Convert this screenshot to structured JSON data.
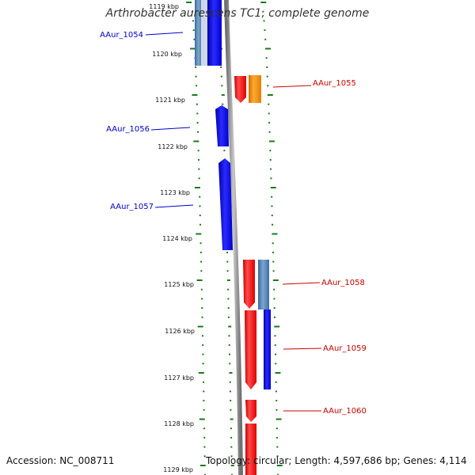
{
  "title": "Arthrobacter aurescens TC1, complete genome",
  "footer": {
    "accession": "Accession: NC_008711",
    "summary": "Topology: circular; Length: 4,597,686 bp; Genes: 4,114"
  },
  "colors": {
    "forward_gene": "#0000ee",
    "reverse_gene": "#ee0000",
    "orange_gene": "#f08c00",
    "steel_gene": "#4d7fb0",
    "tick": "#1a7a1a",
    "backbone": "#8a8a8a"
  },
  "tick_labels": [
    "1119 kbp",
    "1120 kbp",
    "1121 kbp",
    "1122 kbp",
    "1123 kbp",
    "1124 kbp",
    "1125 kbp",
    "1126 kbp",
    "1127 kbp",
    "1128 kbp",
    "1129 kbp"
  ],
  "gene_labels": [
    {
      "text": "AAur_1054",
      "color": "#0000cc"
    },
    {
      "text": "AAur_1055",
      "color": "#cc0000"
    },
    {
      "text": "AAur_1056",
      "color": "#0000cc"
    },
    {
      "text": "AAur_1057",
      "color": "#0000cc"
    },
    {
      "text": "AAur_1058",
      "color": "#cc0000"
    },
    {
      "text": "AAur_1059",
      "color": "#cc0000"
    },
    {
      "text": "AAur_1060",
      "color": "#cc0000"
    }
  ]
}
